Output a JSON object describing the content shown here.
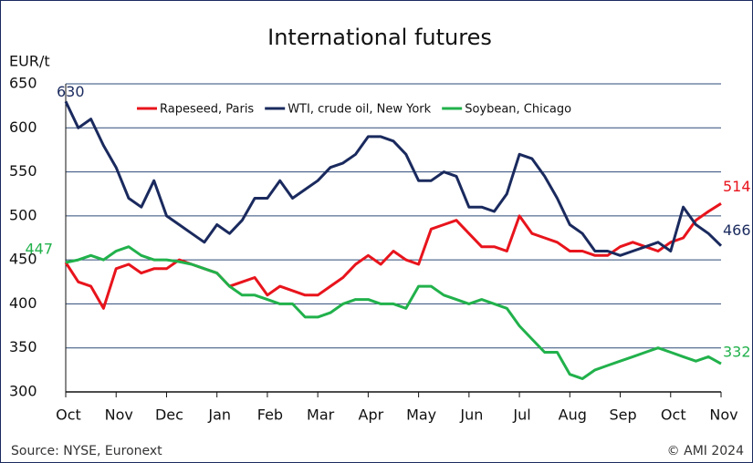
{
  "chart_data": {
    "type": "line",
    "title": "International futures",
    "y_label": "EUR/t",
    "source": "Source: NYSE, Euronext",
    "copyright": "© AMI 2024",
    "categories": [
      "Oct",
      null,
      null,
      null,
      "Nov",
      null,
      null,
      null,
      "Dec",
      null,
      null,
      null,
      "Jan",
      null,
      null,
      null,
      "Feb",
      null,
      null,
      null,
      "Mar",
      null,
      null,
      null,
      "Apr",
      null,
      null,
      null,
      "May",
      null,
      null,
      null,
      "Jun",
      null,
      null,
      null,
      "Jul",
      null,
      null,
      null,
      "Aug",
      null,
      null,
      null,
      "Sep",
      null,
      null,
      null,
      "Oct",
      null,
      null,
      null,
      "Nov"
    ],
    "series": [
      {
        "name": "Rapeseed, Paris",
        "color": "#e8141c",
        "values": [
          447,
          425,
          420,
          395,
          440,
          445,
          435,
          440,
          440,
          450,
          445,
          440,
          435,
          420,
          425,
          430,
          410,
          420,
          415,
          410,
          410,
          420,
          430,
          445,
          455,
          445,
          460,
          450,
          445,
          485,
          490,
          495,
          480,
          465,
          465,
          460,
          500,
          480,
          475,
          470,
          460,
          460,
          455,
          455,
          465,
          470,
          465,
          460,
          470,
          475,
          495,
          505,
          514
        ]
      },
      {
        "name": "WTI, crude oil, New York",
        "color": "#1a2a5e",
        "values": [
          630,
          600,
          610,
          580,
          555,
          520,
          510,
          540,
          500,
          490,
          480,
          470,
          490,
          480,
          495,
          520,
          520,
          540,
          520,
          530,
          540,
          555,
          560,
          570,
          590,
          590,
          585,
          570,
          540,
          540,
          550,
          545,
          510,
          510,
          505,
          525,
          570,
          565,
          545,
          520,
          490,
          480,
          460,
          460,
          455,
          460,
          465,
          470,
          460,
          510,
          490,
          480,
          466
        ]
      },
      {
        "name": "Soybean, Chicago",
        "color": "#21b14b",
        "values": [
          447,
          450,
          455,
          450,
          460,
          465,
          455,
          450,
          450,
          448,
          445,
          440,
          435,
          420,
          410,
          410,
          405,
          400,
          400,
          385,
          385,
          390,
          400,
          405,
          405,
          400,
          400,
          395,
          420,
          420,
          410,
          405,
          400,
          405,
          400,
          395,
          375,
          360,
          345,
          345,
          320,
          315,
          325,
          330,
          335,
          340,
          345,
          350,
          345,
          340,
          335,
          340,
          332
        ]
      }
    ],
    "ylim": [
      300,
      650
    ],
    "yticks": [
      300,
      350,
      400,
      450,
      500,
      550,
      600,
      650
    ],
    "grid": true,
    "legend": "top"
  }
}
